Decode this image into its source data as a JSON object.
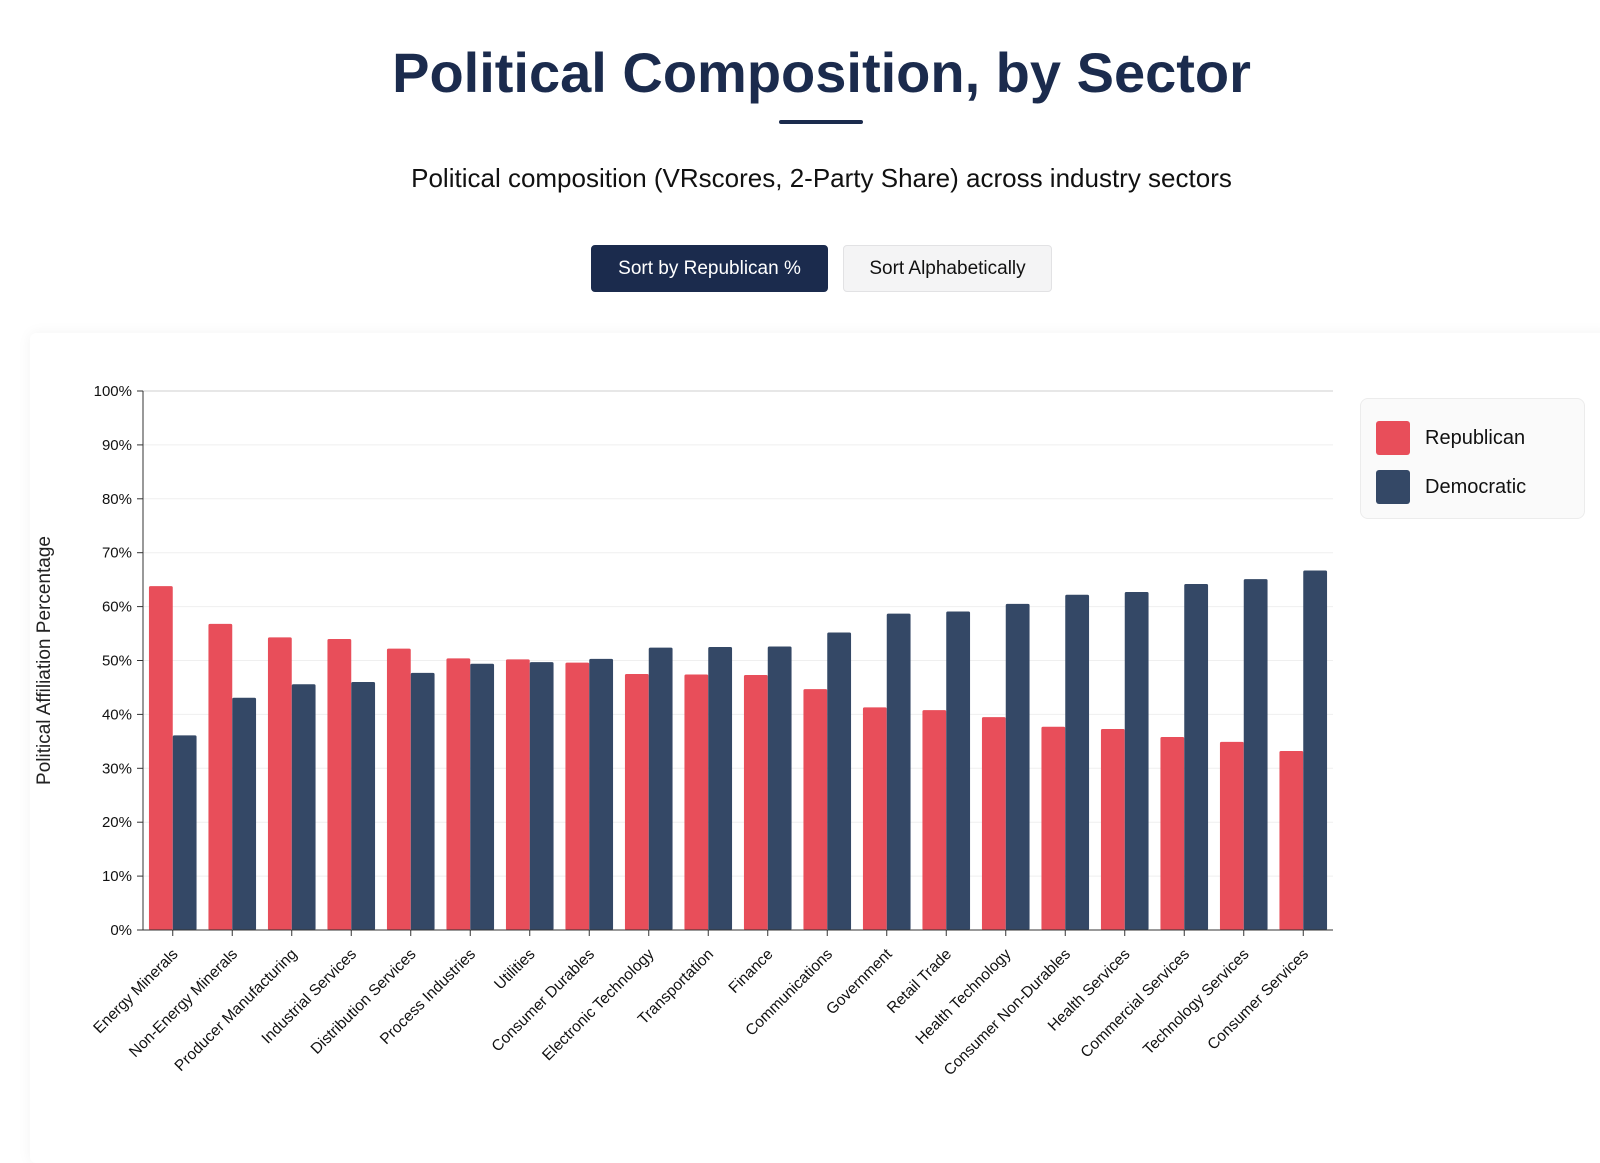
{
  "header": {
    "title": "Political Composition, by Sector",
    "subtitle": "Political composition (VRscores, 2-Party Share) across industry sectors"
  },
  "controls": {
    "sort_republican_label": "Sort by Republican %",
    "sort_alpha_label": "Sort Alphabetically"
  },
  "legend": {
    "items": [
      {
        "label": "Republican",
        "color": "#e84e5a"
      },
      {
        "label": "Democratic",
        "color": "#344866"
      }
    ]
  },
  "chart_data": {
    "type": "bar",
    "title": "",
    "ylabel": "Political Affiliation Percentage",
    "xlabel": "",
    "ylim": [
      0,
      100
    ],
    "yticks": [
      "0%",
      "10%",
      "20%",
      "30%",
      "40%",
      "50%",
      "60%",
      "70%",
      "80%",
      "90%",
      "100%"
    ],
    "grid": true,
    "legend_position": "top-right",
    "categories": [
      "Energy Minerals",
      "Non-Energy Minerals",
      "Producer Manufacturing",
      "Industrial Services",
      "Distribution Services",
      "Process Industries",
      "Utilities",
      "Consumer Durables",
      "Electronic Technology",
      "Transportation",
      "Finance",
      "Communications",
      "Government",
      "Retail Trade",
      "Health Technology",
      "Consumer Non-Durables",
      "Health Services",
      "Commercial Services",
      "Technology Services",
      "Consumer Services"
    ],
    "series": [
      {
        "name": "Republican",
        "color": "#e84e5a",
        "values": [
          63.8,
          56.8,
          54.3,
          54.0,
          52.2,
          50.4,
          50.2,
          49.6,
          47.5,
          47.4,
          47.3,
          44.7,
          41.3,
          40.8,
          39.5,
          37.7,
          37.3,
          35.8,
          34.9,
          33.2
        ]
      },
      {
        "name": "Democratic",
        "color": "#344866",
        "values": [
          36.1,
          43.1,
          45.6,
          46.0,
          47.7,
          49.4,
          49.7,
          50.3,
          52.4,
          52.5,
          52.6,
          55.2,
          58.7,
          59.1,
          60.5,
          62.2,
          62.7,
          64.2,
          65.1,
          66.7
        ]
      }
    ]
  }
}
